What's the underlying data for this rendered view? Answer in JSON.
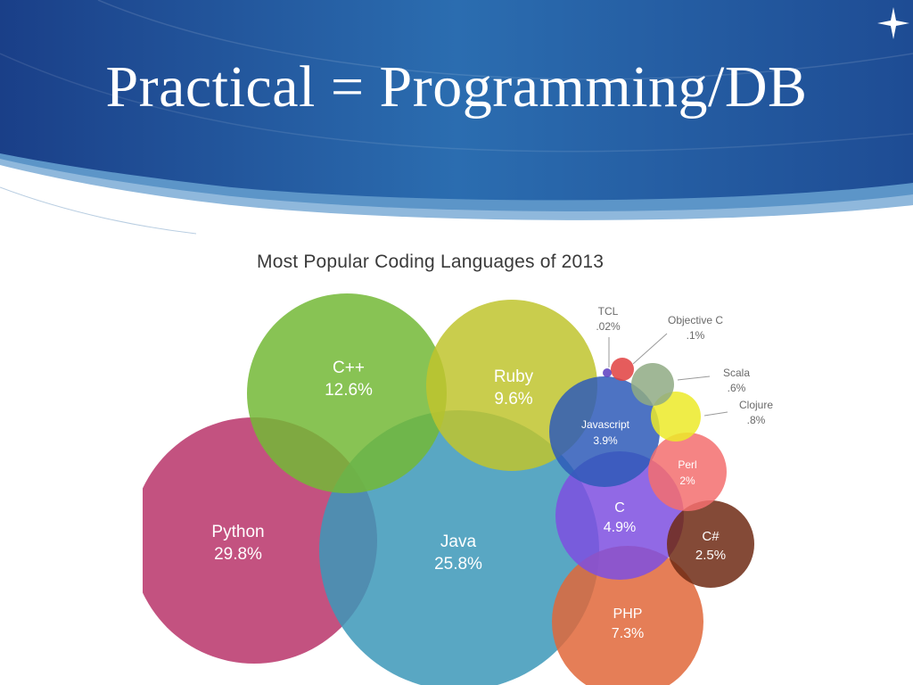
{
  "slide": {
    "title": "Practical = Programming/DB"
  },
  "chart_data": {
    "type": "bubble",
    "title": "Most Popular Coding Languages of 2013",
    "unit": "%",
    "series": [
      {
        "name": "Python",
        "value": 29.8,
        "label": "29.8%",
        "color": "#b8346a"
      },
      {
        "name": "Java",
        "value": 25.8,
        "label": "25.8%",
        "color": "#3c98b8"
      },
      {
        "name": "C++",
        "value": 12.6,
        "label": "12.6%",
        "color": "#73b936"
      },
      {
        "name": "Ruby",
        "value": 9.6,
        "label": "9.6%",
        "color": "#bfc42e"
      },
      {
        "name": "PHP",
        "value": 7.3,
        "label": "7.3%",
        "color": "#e0673a"
      },
      {
        "name": "C",
        "value": 4.9,
        "label": "4.9%",
        "color": "#7e4fe0"
      },
      {
        "name": "Javascript",
        "value": 3.9,
        "label": "3.9%",
        "color": "#2e5ab8"
      },
      {
        "name": "C#",
        "value": 2.5,
        "label": "2.5%",
        "color": "#6e2a14"
      },
      {
        "name": "Perl",
        "value": 2,
        "label": "2%",
        "color": "#f36f6f"
      },
      {
        "name": "Clojure",
        "value": 0.8,
        "label": ".8%",
        "color": "#ecea28"
      },
      {
        "name": "Scala",
        "value": 0.6,
        "label": ".6%",
        "color": "#8faa84"
      },
      {
        "name": "Objective C",
        "value": 0.1,
        "label": ".1%",
        "color": "#e04040"
      },
      {
        "name": "TCL",
        "value": 0.02,
        "label": ".02%",
        "color": "#5a3cc0"
      }
    ]
  }
}
